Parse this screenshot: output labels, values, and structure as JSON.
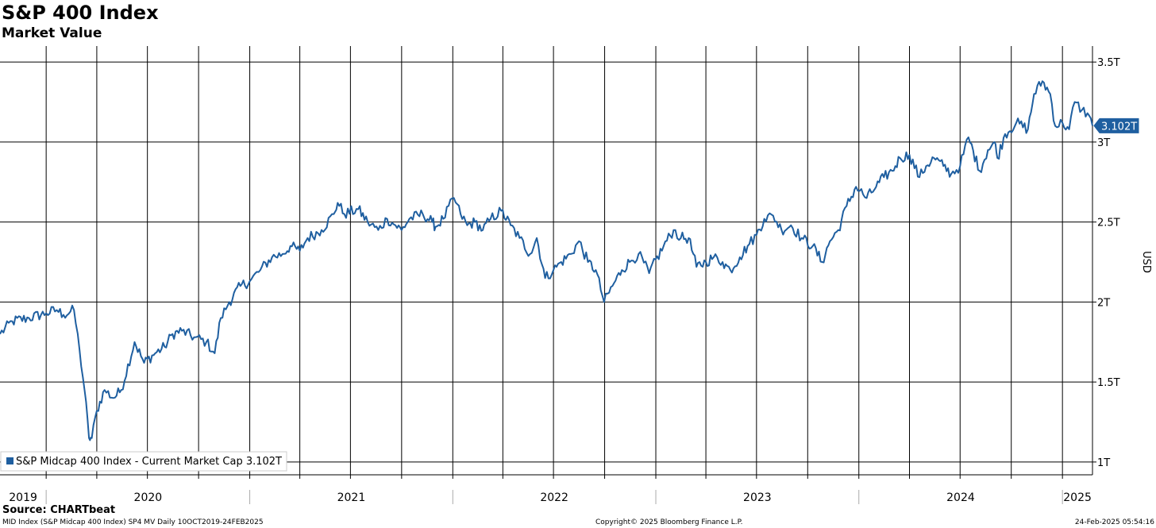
{
  "chart_data": {
    "type": "line",
    "title": "S&P 400 Index",
    "subtitle": "Market Value",
    "ylabel": "USD",
    "ylim": [
      0.92,
      3.6
    ],
    "yticks": [
      1,
      1.5,
      2,
      2.5,
      3,
      3.5
    ],
    "ytick_labels": [
      "1T",
      "1.5T",
      "2T",
      "2.5T",
      "3T",
      "3.5T"
    ],
    "xlim": [
      "2019-10-10",
      "2025-02-24"
    ],
    "year_labels": [
      "2019",
      "2020",
      "2021",
      "2022",
      "2023",
      "2024",
      "2025"
    ],
    "grid": true,
    "legend_position": "bottom-left",
    "color": "#1f5fa0",
    "last_value_label": "3.102T",
    "series": [
      {
        "name": "S&P Midcap 400 Index - Current Market Cap 3.102T",
        "points": [
          [
            "2019-10-10",
            1.8
          ],
          [
            "2019-11-01",
            1.88
          ],
          [
            "2019-12-01",
            1.9
          ],
          [
            "2020-01-01",
            1.93
          ],
          [
            "2020-01-20",
            1.95
          ],
          [
            "2020-02-01",
            1.92
          ],
          [
            "2020-02-20",
            1.95
          ],
          [
            "2020-03-01",
            1.7
          ],
          [
            "2020-03-10",
            1.45
          ],
          [
            "2020-03-18",
            1.15
          ],
          [
            "2020-03-23",
            1.15
          ],
          [
            "2020-04-01",
            1.32
          ],
          [
            "2020-04-15",
            1.45
          ],
          [
            "2020-05-01",
            1.4
          ],
          [
            "2020-05-15",
            1.45
          ],
          [
            "2020-06-08",
            1.75
          ],
          [
            "2020-06-25",
            1.62
          ],
          [
            "2020-07-15",
            1.68
          ],
          [
            "2020-08-01",
            1.72
          ],
          [
            "2020-08-15",
            1.8
          ],
          [
            "2020-09-01",
            1.82
          ],
          [
            "2020-09-23",
            1.78
          ],
          [
            "2020-10-15",
            1.75
          ],
          [
            "2020-10-30",
            1.68
          ],
          [
            "2020-11-10",
            1.9
          ],
          [
            "2020-11-25",
            2.0
          ],
          [
            "2020-12-15",
            2.1
          ],
          [
            "2021-01-01",
            2.13
          ],
          [
            "2021-01-20",
            2.2
          ],
          [
            "2021-02-10",
            2.28
          ],
          [
            "2021-03-01",
            2.3
          ],
          [
            "2021-03-15",
            2.35
          ],
          [
            "2021-04-01",
            2.32
          ],
          [
            "2021-04-15",
            2.4
          ],
          [
            "2021-05-10",
            2.45
          ],
          [
            "2021-06-01",
            2.55
          ],
          [
            "2021-06-08",
            2.62
          ],
          [
            "2021-06-20",
            2.55
          ],
          [
            "2021-07-15",
            2.58
          ],
          [
            "2021-08-01",
            2.5
          ],
          [
            "2021-08-20",
            2.45
          ],
          [
            "2021-09-05",
            2.52
          ],
          [
            "2021-09-20",
            2.48
          ],
          [
            "2021-10-01",
            2.45
          ],
          [
            "2021-10-15",
            2.52
          ],
          [
            "2021-11-08",
            2.55
          ],
          [
            "2021-11-25",
            2.5
          ],
          [
            "2021-12-01",
            2.47
          ],
          [
            "2021-12-15",
            2.52
          ],
          [
            "2022-01-03",
            2.65
          ],
          [
            "2022-01-15",
            2.55
          ],
          [
            "2022-01-27",
            2.48
          ],
          [
            "2022-02-10",
            2.5
          ],
          [
            "2022-02-24",
            2.45
          ],
          [
            "2022-03-10",
            2.52
          ],
          [
            "2022-03-29",
            2.57
          ],
          [
            "2022-04-15",
            2.48
          ],
          [
            "2022-05-01",
            2.4
          ],
          [
            "2022-05-20",
            2.3
          ],
          [
            "2022-06-01",
            2.4
          ],
          [
            "2022-06-16",
            2.15
          ],
          [
            "2022-07-01",
            2.2
          ],
          [
            "2022-07-15",
            2.25
          ],
          [
            "2022-08-01",
            2.3
          ],
          [
            "2022-08-16",
            2.38
          ],
          [
            "2022-09-01",
            2.25
          ],
          [
            "2022-09-15",
            2.2
          ],
          [
            "2022-09-30",
            2.0
          ],
          [
            "2022-10-15",
            2.1
          ],
          [
            "2022-11-01",
            2.2
          ],
          [
            "2022-11-15",
            2.25
          ],
          [
            "2022-12-01",
            2.3
          ],
          [
            "2022-12-20",
            2.18
          ],
          [
            "2023-01-15",
            2.35
          ],
          [
            "2023-02-02",
            2.45
          ],
          [
            "2023-02-15",
            2.4
          ],
          [
            "2023-03-01",
            2.4
          ],
          [
            "2023-03-15",
            2.22
          ],
          [
            "2023-04-01",
            2.25
          ],
          [
            "2023-04-15",
            2.28
          ],
          [
            "2023-05-01",
            2.25
          ],
          [
            "2023-05-15",
            2.2
          ],
          [
            "2023-06-01",
            2.28
          ],
          [
            "2023-06-15",
            2.35
          ],
          [
            "2023-07-01",
            2.42
          ],
          [
            "2023-07-15",
            2.52
          ],
          [
            "2023-07-31",
            2.54
          ],
          [
            "2023-08-15",
            2.45
          ],
          [
            "2023-09-01",
            2.48
          ],
          [
            "2023-09-20",
            2.4
          ],
          [
            "2023-10-10",
            2.35
          ],
          [
            "2023-10-27",
            2.25
          ],
          [
            "2023-11-10",
            2.38
          ],
          [
            "2023-11-25",
            2.45
          ],
          [
            "2023-12-10",
            2.6
          ],
          [
            "2023-12-27",
            2.72
          ],
          [
            "2024-01-15",
            2.65
          ],
          [
            "2024-02-01",
            2.72
          ],
          [
            "2024-02-15",
            2.78
          ],
          [
            "2024-03-01",
            2.82
          ],
          [
            "2024-03-15",
            2.9
          ],
          [
            "2024-04-01",
            2.92
          ],
          [
            "2024-04-19",
            2.78
          ],
          [
            "2024-05-01",
            2.85
          ],
          [
            "2024-05-15",
            2.9
          ],
          [
            "2024-06-01",
            2.85
          ],
          [
            "2024-06-15",
            2.8
          ],
          [
            "2024-07-01",
            2.85
          ],
          [
            "2024-07-16",
            3.03
          ],
          [
            "2024-08-05",
            2.82
          ],
          [
            "2024-08-20",
            2.95
          ],
          [
            "2024-09-01",
            3.0
          ],
          [
            "2024-09-06",
            2.9
          ],
          [
            "2024-09-20",
            3.05
          ],
          [
            "2024-10-10",
            3.12
          ],
          [
            "2024-10-31",
            3.08
          ],
          [
            "2024-11-11",
            3.3
          ],
          [
            "2024-11-26",
            3.38
          ],
          [
            "2024-12-10",
            3.3
          ],
          [
            "2024-12-19",
            3.1
          ],
          [
            "2025-01-01",
            3.12
          ],
          [
            "2025-01-13",
            3.08
          ],
          [
            "2025-01-23",
            3.25
          ],
          [
            "2025-02-05",
            3.2
          ],
          [
            "2025-02-15",
            3.18
          ],
          [
            "2025-02-24",
            3.102
          ]
        ]
      }
    ]
  },
  "footer": {
    "source": "Source: CHARTbeat",
    "left": "MID Index (S&P Midcap 400 Index) SP4 MV  Daily 10OCT2019-24FEB2025",
    "center": "Copyright© 2025 Bloomberg Finance L.P.",
    "right": "24-Feb-2025 05:54:16"
  }
}
